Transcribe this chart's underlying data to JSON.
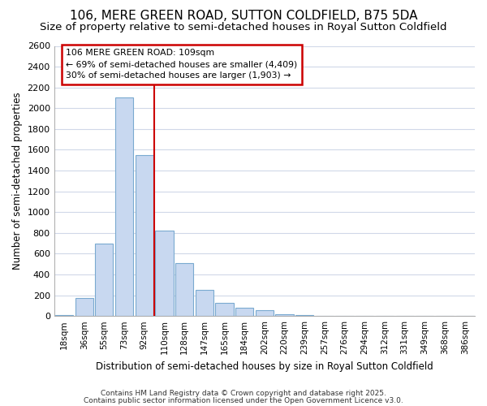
{
  "title": "106, MERE GREEN ROAD, SUTTON COLDFIELD, B75 5DA",
  "subtitle": "Size of property relative to semi-detached houses in Royal Sutton Coldfield",
  "xlabel": "Distribution of semi-detached houses by size in Royal Sutton Coldfield",
  "ylabel": "Number of semi-detached properties",
  "categories": [
    "18sqm",
    "36sqm",
    "55sqm",
    "73sqm",
    "92sqm",
    "110sqm",
    "128sqm",
    "147sqm",
    "165sqm",
    "184sqm",
    "202sqm",
    "220sqm",
    "239sqm",
    "257sqm",
    "276sqm",
    "294sqm",
    "312sqm",
    "331sqm",
    "349sqm",
    "368sqm",
    "386sqm"
  ],
  "values": [
    10,
    175,
    700,
    2100,
    1550,
    820,
    510,
    255,
    130,
    80,
    55,
    20,
    10,
    0,
    0,
    0,
    0,
    0,
    0,
    0,
    0
  ],
  "bar_color": "#c8d8f0",
  "bar_edge_color": "#7aaad0",
  "highlight_index": 5,
  "vline_color": "#cc0000",
  "annotation_box_color": "#ffffff",
  "annotation_border_color": "#cc0000",
  "annotation_text_line1": "106 MERE GREEN ROAD: 109sqm",
  "annotation_text_line2": "← 69% of semi-detached houses are smaller (4,409)",
  "annotation_text_line3": "30% of semi-detached houses are larger (1,903) →",
  "footer_line1": "Contains HM Land Registry data © Crown copyright and database right 2025.",
  "footer_line2": "Contains public sector information licensed under the Open Government Licence v3.0.",
  "ylim": [
    0,
    2600
  ],
  "yticks": [
    0,
    200,
    400,
    600,
    800,
    1000,
    1200,
    1400,
    1600,
    1800,
    2000,
    2200,
    2400,
    2600
  ],
  "background_color": "#ffffff",
  "plot_bg_color": "#ffffff",
  "grid_color": "#d0d8e8",
  "title_fontsize": 11,
  "subtitle_fontsize": 9.5
}
